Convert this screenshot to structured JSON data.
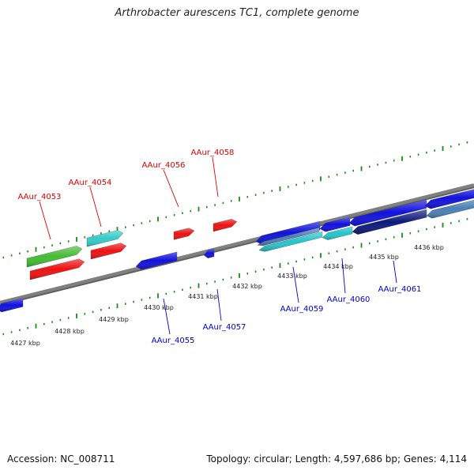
{
  "title": "Arthrobacter aurescens TC1, complete genome",
  "footer": {
    "accession": "Accession: NC_008711",
    "topology": "Topology: circular; Length: 4,597,686 bp; Genes: 4,114"
  },
  "colors": {
    "forward_gene": "#ee1111",
    "reverse_gene": "#1111dd",
    "forward_label": "#dd0000",
    "reverse_label": "#0000cc",
    "backbone": "#808080",
    "tick": "#1a8a1a"
  },
  "forward_labels": [
    "AAur_4053",
    "AAur_4054",
    "AAur_4056",
    "AAur_4058"
  ],
  "reverse_labels": [
    "AAur_4055",
    "AAur_4057",
    "AAur_4059",
    "AAur_4060",
    "AAur_4061"
  ],
  "scale_labels": [
    "4427 kbp",
    "4428 kbp",
    "4429 kbp",
    "4430 kbp",
    "4431 kbp",
    "4432 kbp",
    "4433 kbp",
    "4434 kbp",
    "4435 kbp",
    "4436 kbp"
  ]
}
